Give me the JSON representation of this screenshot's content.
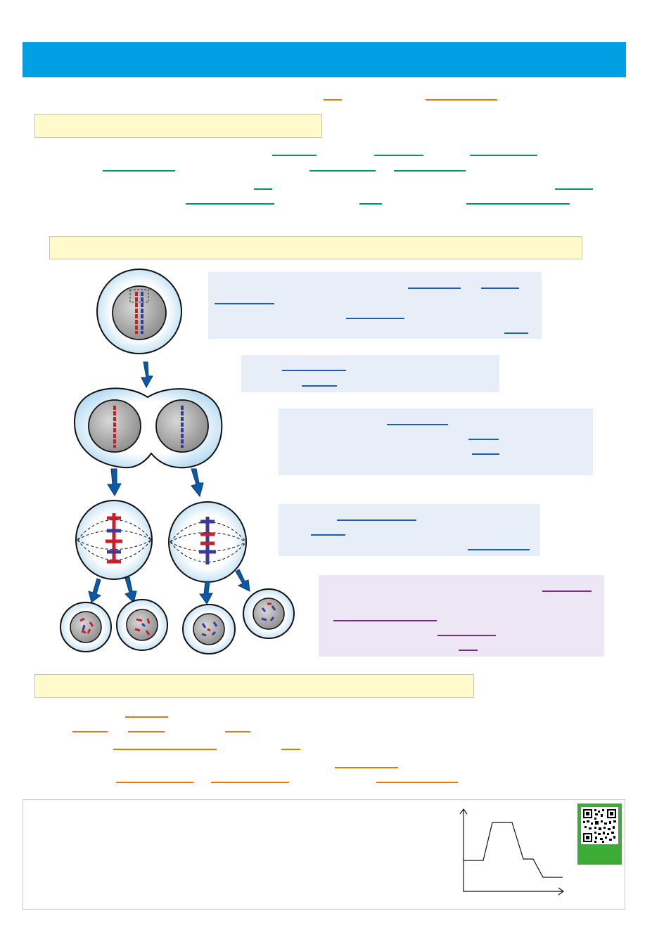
{
  "header": {
    "title": ""
  },
  "colors": {
    "header": "#009fe3",
    "highlight": "#fff9cc",
    "info_blue": "#e8eef8",
    "info_purple": "#ede6f4",
    "homolog_red": "#c8202a",
    "homolog_blue": "#3a3a9a",
    "arrow": "#0a5aa8",
    "blank_orange": "#e07a10",
    "blank_green": "#009966",
    "blank_blue": "#1a5fa8",
    "blank_purple": "#7a2a8a",
    "qr_green": "#3cab38"
  },
  "sections": {
    "s1_title": "",
    "s2_title": "",
    "s3_title": ""
  },
  "boxes": {
    "b1": "",
    "b2": "",
    "b3": "",
    "b4": "",
    "b5": ""
  },
  "exercise": {
    "text": ""
  },
  "icons": {
    "qr": "qr-code-icon",
    "arrow": "down-arrow-icon",
    "graph": "line-graph-icon"
  }
}
